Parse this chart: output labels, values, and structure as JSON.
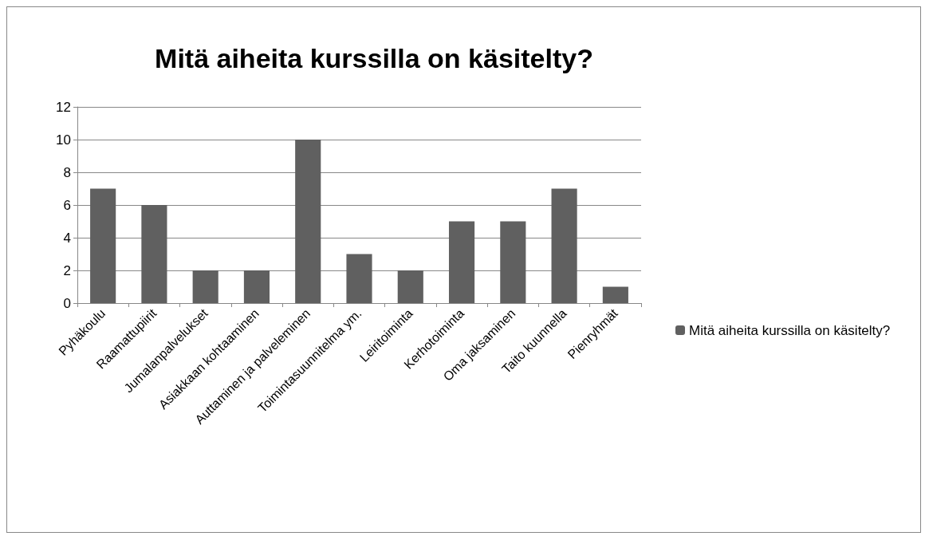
{
  "chart_data": {
    "type": "bar",
    "title": "Mitä aiheita kurssilla on käsitelty?",
    "categories": [
      "Pyhäkoulu",
      "Raamattupiirit",
      "Jumalanpalvelukset",
      "Asiakkaan kohtaaminen",
      "Auttaminen ja palveleminen",
      "Toimintasuunnitelma ym.",
      "Leiritoiminta",
      "Kerhotoiminta",
      "Oma jaksaminen",
      "Taito kuunnella",
      "Pienryhmät"
    ],
    "series": [
      {
        "name": "Mitä aiheita kurssilla on käsitelty?",
        "color": "#606060",
        "values": [
          7,
          6,
          2,
          2,
          10,
          3,
          2,
          5,
          5,
          7,
          1
        ]
      }
    ],
    "ylim": [
      0,
      12
    ],
    "yticks": [
      0,
      2,
      4,
      6,
      8,
      10,
      12
    ],
    "grid": "y",
    "legend": "right"
  }
}
